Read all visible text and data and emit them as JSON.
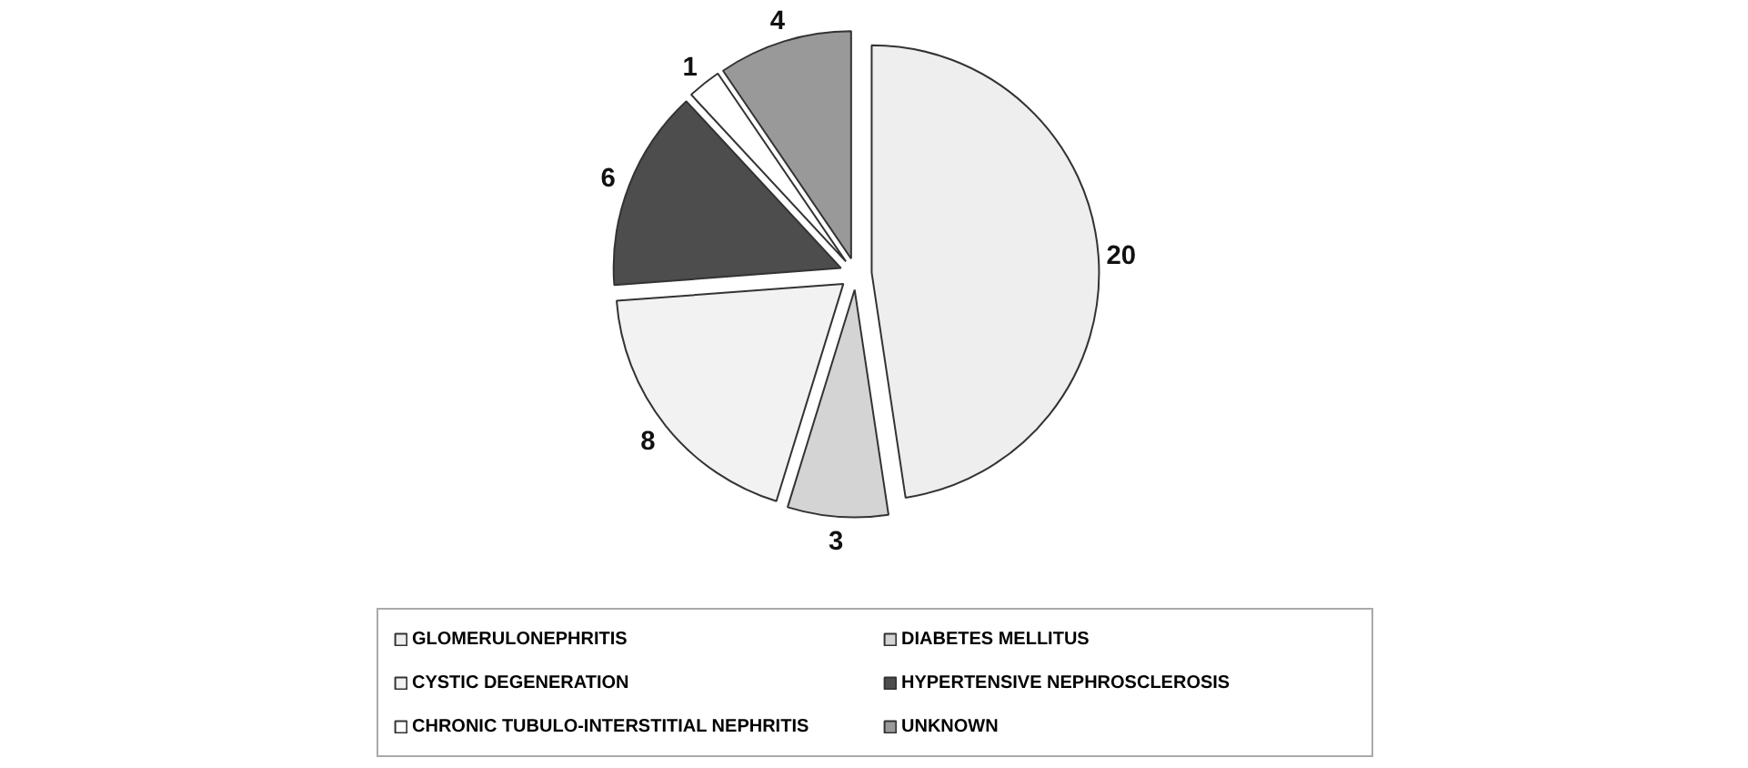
{
  "chart_data": {
    "type": "pie",
    "categories": [
      "GLOMERULONEPHRITIS",
      "DIABETES MELLITUS",
      "CYSTIC DEGENERATION",
      "HYPERTENSIVE NEPHROSCLEROSIS",
      "CHRONIC TUBULO-INTERSTITIAL NEPHRITIS",
      "UNKNOWN"
    ],
    "values": [
      20,
      3,
      8,
      6,
      1,
      4
    ],
    "colors": [
      "#eeeeee",
      "#d4d4d4",
      "#f2f2f2",
      "#4d4d4d",
      "#ffffff",
      "#999999"
    ],
    "data_labels": true,
    "legend": "bottom"
  }
}
